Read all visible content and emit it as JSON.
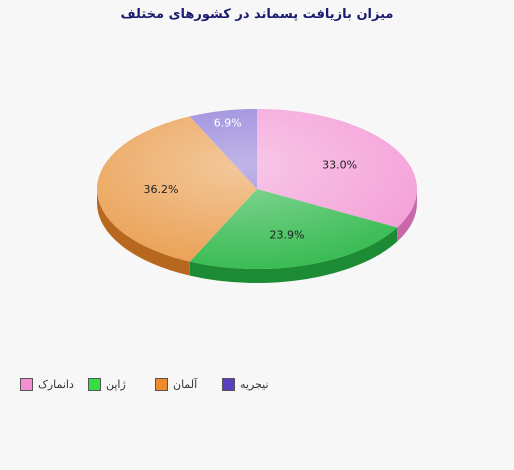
{
  "chart_data": {
    "type": "pie",
    "title": "میزان بازیافت پسماند در کشورهای مختلف",
    "series": [
      {
        "name": "دانمارک",
        "value": 33.0,
        "label": "33.0%",
        "color": "#f39ad6",
        "dark": "#c867aa"
      },
      {
        "name": "ژاپن",
        "value": 23.9,
        "label": "23.9%",
        "color": "#2eb84a",
        "dark": "#1d8a34"
      },
      {
        "name": "آلمان",
        "value": 36.2,
        "label": "36.2%",
        "color": "#e99b4a",
        "dark": "#b8681e"
      },
      {
        "name": "نیجریه",
        "value": 6.9,
        "label": "6.9%",
        "color": "#8a78d6",
        "dark": "#5c4aa8"
      }
    ],
    "legend_position": "bottom-left"
  },
  "legend": {
    "items": [
      {
        "label": "دانمارک",
        "color": "#f48fd2"
      },
      {
        "label": "ژاپن",
        "color": "#33dd44"
      },
      {
        "label": "آلمان",
        "color": "#ee8b2c"
      },
      {
        "label": "نیجریه",
        "color": "#5a3fc0"
      }
    ]
  }
}
